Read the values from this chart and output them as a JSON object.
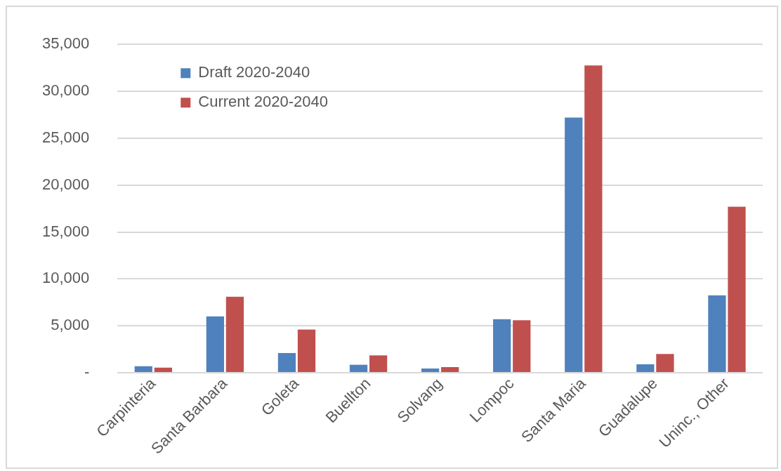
{
  "chart_data": {
    "type": "bar",
    "categories": [
      "Carpinteria",
      "Santa Barbara",
      "Goleta",
      "Buellton",
      "Solvang",
      "Lompoc",
      "Santa Maria",
      "Guadalupe",
      "Uninc., Other"
    ],
    "series": [
      {
        "name": "Draft 2020-2040",
        "color": "#4f81bd",
        "values": [
          700,
          6000,
          2100,
          850,
          450,
          5700,
          27200,
          900,
          8250
        ]
      },
      {
        "name": "Current 2020-2040",
        "color": "#c0504d",
        "values": [
          550,
          8100,
          4600,
          1850,
          600,
          5600,
          32750,
          2000,
          17700
        ]
      }
    ],
    "ylim": [
      0,
      35000
    ],
    "yticks": [
      {
        "value": 0,
        "label": "-"
      },
      {
        "value": 5000,
        "label": "5,000"
      },
      {
        "value": 10000,
        "label": "10,000"
      },
      {
        "value": 15000,
        "label": "15,000"
      },
      {
        "value": 20000,
        "label": "20,000"
      },
      {
        "value": 25000,
        "label": "25,000"
      },
      {
        "value": 30000,
        "label": "30,000"
      },
      {
        "value": 35000,
        "label": "35,000"
      }
    ],
    "grid": "y",
    "legend": "top left"
  }
}
